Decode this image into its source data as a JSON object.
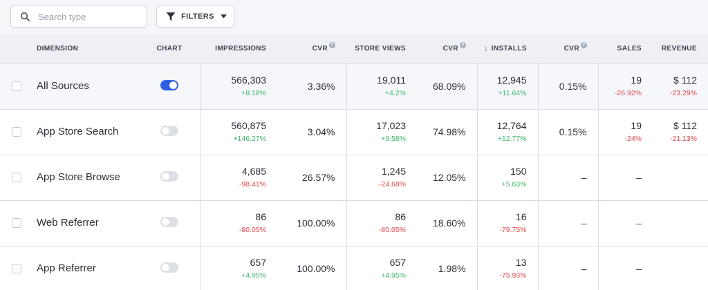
{
  "toolbar": {
    "search_placeholder": "Search type",
    "filters_label": "FILTERS"
  },
  "columns": {
    "dimension": "DIMENSION",
    "chart": "CHART",
    "impressions": "IMPRESSIONS",
    "cvr1": "CVR",
    "store_views": "STORE VIEWS",
    "cvr2": "CVR",
    "installs": "INSTALLS",
    "cvr3": "CVR",
    "sales": "SALES",
    "revenue": "REVENUE",
    "help_glyph": "?",
    "sort_arrow": "↓"
  },
  "colors": {
    "positive": "#3fb76a",
    "negative": "#e0474c",
    "toggle_on": "#2f5ee3"
  },
  "rows": [
    {
      "name": "All Sources",
      "chart_on": true,
      "impressions": "566,303",
      "impressions_change": "+8.18%",
      "cvr1": "3.36%",
      "store_views": "19,011",
      "store_views_change": "+4.2%",
      "cvr2": "68.09%",
      "installs": "12,945",
      "installs_change": "+11.64%",
      "cvr3": "0.15%",
      "sales": "19",
      "sales_change": "-26.92%",
      "revenue": "$ 112",
      "revenue_change": "-23.29%"
    },
    {
      "name": "App Store Search",
      "chart_on": false,
      "impressions": "560,875",
      "impressions_change": "+146.27%",
      "cvr1": "3.04%",
      "store_views": "17,023",
      "store_views_change": "+9.58%",
      "cvr2": "74.98%",
      "installs": "12,764",
      "installs_change": "+12.77%",
      "cvr3": "0.15%",
      "sales": "19",
      "sales_change": "-24%",
      "revenue": "$ 112",
      "revenue_change": "-21.13%"
    },
    {
      "name": "App Store Browse",
      "chart_on": false,
      "impressions": "4,685",
      "impressions_change": "-98.41%",
      "cvr1": "26.57%",
      "store_views": "1,245",
      "store_views_change": "-24.68%",
      "cvr2": "12.05%",
      "installs": "150",
      "installs_change": "+5.63%",
      "cvr3": "–",
      "sales": "–",
      "sales_change": "",
      "revenue": "",
      "revenue_change": ""
    },
    {
      "name": "Web Referrer",
      "chart_on": false,
      "impressions": "86",
      "impressions_change": "-80.05%",
      "cvr1": "100.00%",
      "store_views": "86",
      "store_views_change": "-80.05%",
      "cvr2": "18.60%",
      "installs": "16",
      "installs_change": "-79.75%",
      "cvr3": "–",
      "sales": "–",
      "sales_change": "",
      "revenue": "",
      "revenue_change": ""
    },
    {
      "name": "App Referrer",
      "chart_on": false,
      "impressions": "657",
      "impressions_change": "+4.95%",
      "cvr1": "100.00%",
      "store_views": "657",
      "store_views_change": "+4.95%",
      "cvr2": "1.98%",
      "installs": "13",
      "installs_change": "-75.93%",
      "cvr3": "–",
      "sales": "–",
      "sales_change": "",
      "revenue": "",
      "revenue_change": ""
    }
  ]
}
